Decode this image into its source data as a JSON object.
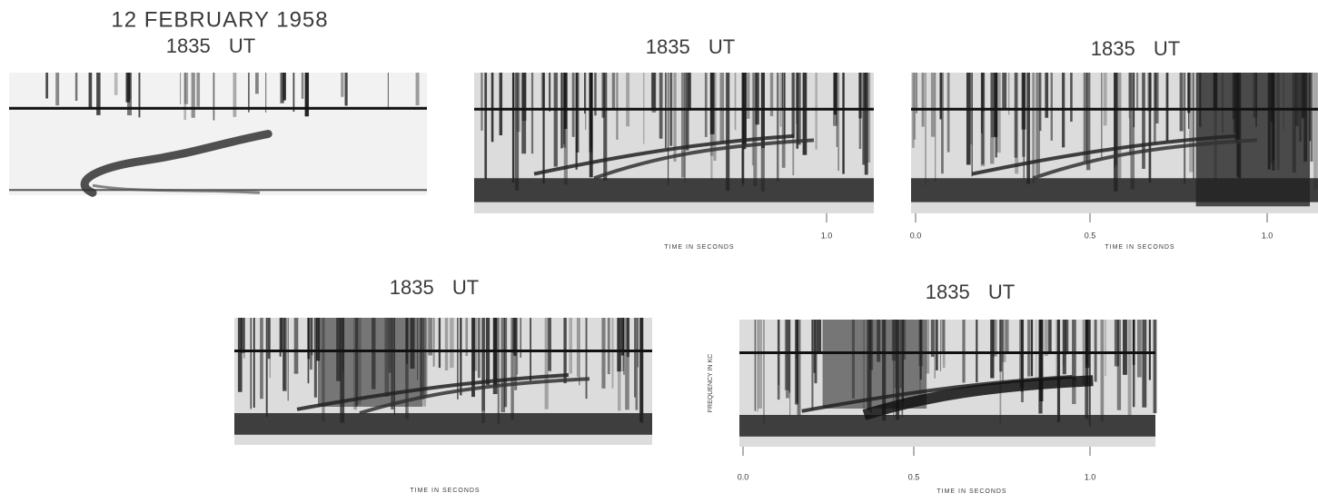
{
  "figure": {
    "date": "12 FEBRUARY 1958",
    "panels": [
      {
        "label": "1835 UT"
      },
      {
        "label": "1835 UT",
        "time_ticks": [
          "1.0"
        ],
        "time_label": "TIME IN SECONDS"
      },
      {
        "label": "1835 UT",
        "time_ticks": [
          "0.0",
          "0.5",
          "1.0"
        ],
        "time_label": "TIME IN SECONDS"
      },
      {
        "label": "1835 UT",
        "time_label": "TIME IN SECONDS"
      },
      {
        "label": "1835 UT",
        "time_ticks": [
          "0.0",
          "0.5",
          "1.0"
        ],
        "time_label": "TIME IN SECONDS",
        "freq_label": "FREQUENCY IN KC"
      }
    ]
  }
}
